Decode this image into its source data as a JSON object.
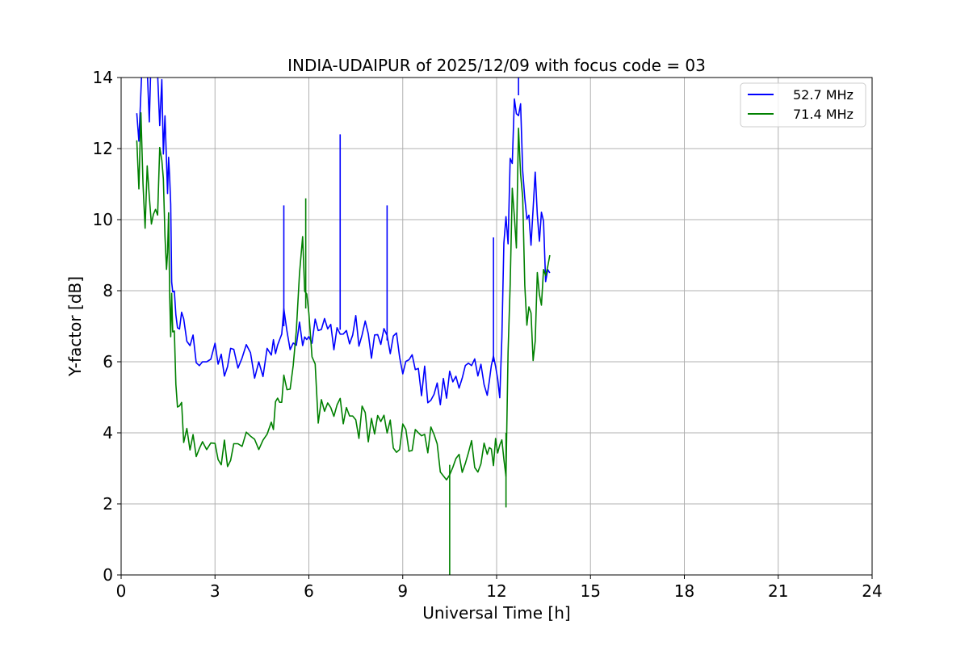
{
  "chart_data": {
    "type": "line",
    "title": "INDIA-UDAIPUR of 2025/12/09 with focus code = 03",
    "xlabel": "Universal Time [h]",
    "ylabel": "Y-factor [dB]",
    "xlim": [
      0,
      24
    ],
    "ylim": [
      0,
      14
    ],
    "xticks": [
      0,
      3,
      6,
      9,
      12,
      15,
      18,
      21,
      24
    ],
    "xtick_labels": [
      "0",
      "3",
      "6",
      "9",
      "12",
      "15",
      "18",
      "21",
      "24"
    ],
    "yticks": [
      0,
      2,
      4,
      6,
      8,
      10,
      12,
      14
    ],
    "ytick_labels": [
      "0",
      "2",
      "4",
      "6",
      "8",
      "10",
      "12",
      "14"
    ],
    "grid": true,
    "legend_position": "top-right",
    "series": [
      {
        "name": "52.7 MHz",
        "color": "#0000ff",
        "x": [
          0.5,
          0.7,
          0.9,
          1.1,
          1.3,
          1.45,
          1.55,
          1.65,
          1.8,
          2.0,
          2.3,
          2.6,
          3.0,
          3.3,
          3.6,
          4.0,
          4.4,
          4.8,
          5.0,
          5.2,
          5.5,
          5.8,
          6.0,
          6.3,
          6.6,
          6.9,
          7.2,
          7.5,
          7.8,
          8.1,
          8.4,
          8.7,
          9.0,
          9.3,
          9.6,
          9.9,
          10.2,
          10.5,
          10.8,
          11.1,
          11.4,
          11.7,
          11.9,
          12.1,
          12.3,
          12.5,
          12.7,
          12.9,
          13.1,
          13.3,
          13.5,
          13.7
        ],
        "values": [
          12.5,
          13.5,
          13.8,
          13.5,
          13.0,
          12.5,
          10.0,
          8.0,
          7.2,
          6.8,
          6.4,
          6.2,
          6.0,
          5.9,
          6.0,
          6.1,
          5.9,
          6.3,
          6.6,
          7.0,
          6.8,
          7.0,
          6.8,
          6.9,
          6.8,
          6.9,
          6.7,
          6.8,
          6.7,
          6.6,
          6.6,
          6.4,
          6.0,
          5.8,
          5.5,
          5.2,
          5.0,
          5.4,
          5.8,
          5.6,
          5.5,
          5.6,
          6.0,
          5.0,
          9.5,
          12.5,
          13.5,
          11.0,
          10.5,
          9.5,
          9.0,
          8.5
        ],
        "peaks": [
          [
            5.2,
            10.4
          ],
          [
            7.0,
            12.4
          ],
          [
            8.5,
            10.4
          ],
          [
            11.9,
            9.5
          ],
          [
            12.7,
            14.0
          ]
        ]
      },
      {
        "name": "71.4 MHz",
        "color": "#008000",
        "x": [
          0.5,
          0.7,
          0.9,
          1.1,
          1.3,
          1.45,
          1.55,
          1.65,
          1.8,
          2.0,
          2.3,
          2.6,
          3.0,
          3.3,
          3.6,
          4.0,
          4.4,
          4.8,
          5.0,
          5.2,
          5.5,
          5.8,
          6.0,
          6.3,
          6.6,
          6.9,
          7.2,
          7.5,
          7.8,
          8.1,
          8.4,
          8.7,
          9.0,
          9.3,
          9.6,
          9.9,
          10.2,
          10.5,
          10.8,
          11.1,
          11.4,
          11.7,
          11.9,
          12.1,
          12.3,
          12.5,
          12.7,
          12.9,
          13.1,
          13.3,
          13.5,
          13.7
        ],
        "values": [
          12.3,
          11.5,
          11.0,
          11.5,
          11.0,
          9.5,
          8.5,
          7.0,
          5.0,
          4.0,
          3.6,
          3.5,
          3.5,
          3.5,
          3.7,
          3.8,
          3.7,
          4.2,
          4.5,
          5.2,
          6.0,
          9.0,
          7.5,
          4.5,
          4.3,
          4.6,
          4.4,
          4.3,
          4.3,
          4.2,
          4.0,
          3.9,
          3.8,
          3.7,
          3.7,
          3.8,
          3.2,
          3.1,
          3.4,
          3.3,
          3.4,
          3.4,
          3.5,
          3.5,
          4.0,
          10.0,
          11.0,
          9.0,
          6.0,
          7.0,
          8.0,
          9.0
        ],
        "peaks": [
          [
            5.9,
            10.6
          ],
          [
            10.5,
            0.0
          ],
          [
            12.3,
            1.9
          ]
        ]
      }
    ]
  }
}
